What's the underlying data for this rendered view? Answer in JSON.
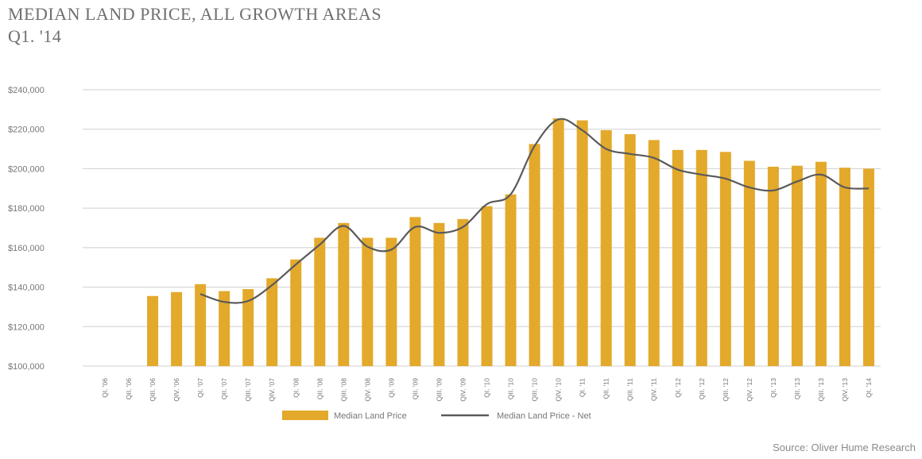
{
  "chart_data": {
    "type": "bar",
    "title": "MEDIAN LAND PRICE, ALL GROWTH AREAS",
    "subtitle": "Q1. '14",
    "source": "Source: Oliver Hume Research",
    "ylim": [
      100000,
      240000
    ],
    "yticks": [
      100000,
      120000,
      140000,
      160000,
      180000,
      200000,
      220000,
      240000
    ],
    "ytick_labels": [
      "$100,000",
      "$120,000",
      "$140,000",
      "$160,000",
      "$180,000",
      "$200,000",
      "$220,000",
      "$240,000"
    ],
    "grid": true,
    "legend_position": "bottom-center",
    "colors": {
      "bar": "#e3a92b",
      "line": "#5a5a5a",
      "grid": "#cfcfcf",
      "text": "#777777"
    },
    "categories": [
      "QI. '06",
      "QII. '06",
      "QIII. '06",
      "QIV. '06",
      "QI. '07",
      "QII. '07",
      "QIII. '07",
      "QIV. '07",
      "QI. '08",
      "QII. '08",
      "QIII. '08",
      "QIV. '08",
      "QI. '09",
      "QII. '09",
      "QIII. '09",
      "QIV. '09",
      "QI. '10",
      "QII. '10",
      "QIII. '10",
      "QIV. '10",
      "QI. '11",
      "QII. '11",
      "QIII. '11",
      "QIV. '11",
      "QI. '12",
      "QII. '12",
      "QIII. '12",
      "QIV. '12",
      "QI. '13",
      "QII. '13",
      "QIII. '13",
      "QIV. '13",
      "QI. '14"
    ],
    "series": [
      {
        "name": "Median Land Price",
        "type": "bar",
        "values": [
          null,
          null,
          135500,
          137500,
          141500,
          138000,
          139000,
          144500,
          154000,
          165000,
          172500,
          165000,
          165000,
          175500,
          172500,
          174500,
          181000,
          187000,
          212500,
          225500,
          224500,
          219500,
          217500,
          214500,
          209500,
          209500,
          208500,
          204000,
          201000,
          201500,
          203500,
          200500,
          200000
        ]
      },
      {
        "name": "Median Land Price - Net",
        "type": "line",
        "values": [
          null,
          null,
          null,
          null,
          136500,
          132500,
          133000,
          141000,
          151500,
          161500,
          171000,
          160500,
          159000,
          170500,
          167500,
          170500,
          182000,
          187000,
          211500,
          225000,
          219500,
          210000,
          207500,
          205500,
          199500,
          197000,
          195000,
          190500,
          189000,
          193500,
          197000,
          190500,
          190000
        ]
      }
    ]
  }
}
